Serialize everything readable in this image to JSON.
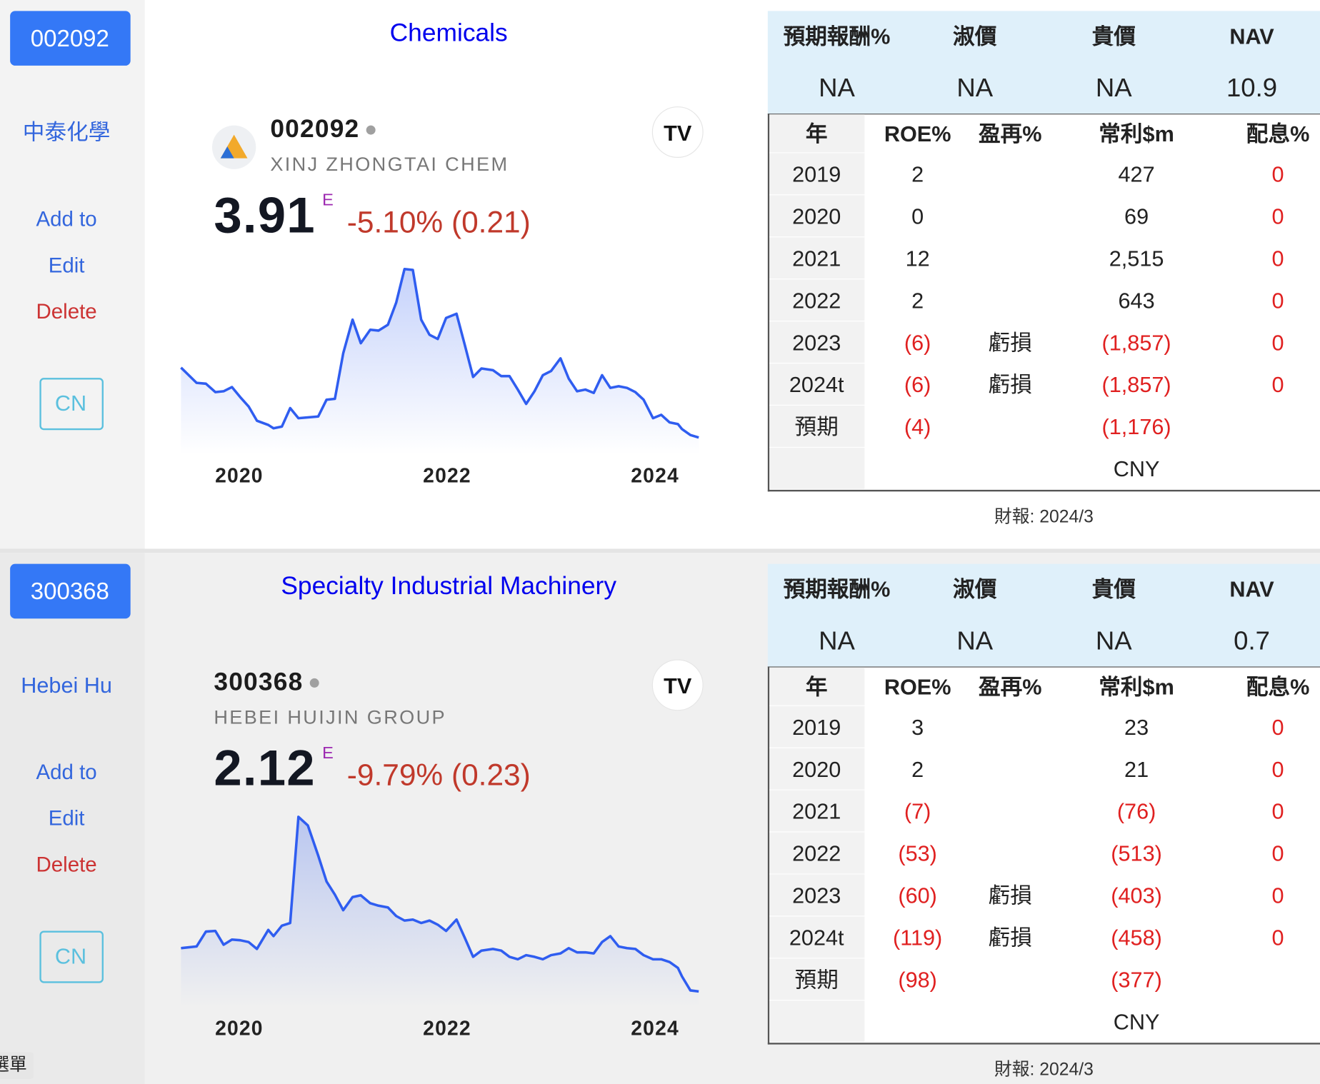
{
  "menu": "選單",
  "cards": [
    {
      "code": "002092",
      "name": "中泰化學",
      "industry": "Chemicals",
      "actions": [
        "Add to",
        "Edit",
        "Delete"
      ],
      "market": "CN",
      "quote": {
        "symbol": "002092",
        "company": "XINJ ZHONGTAI CHEM",
        "price": "3.91",
        "flag": "E",
        "change": "-5.10% (0.21)"
      },
      "valuation": {
        "headers": [
          "預期報酬%",
          "淑價",
          "貴價",
          "NAV"
        ],
        "values": [
          "NA",
          "NA",
          "NA",
          "10.9"
        ]
      },
      "financials": {
        "headers": [
          "年",
          "ROE%",
          "盈再%",
          "常利$m",
          "配息%"
        ],
        "rows": [
          [
            "2019",
            "2",
            null,
            "427",
            "0"
          ],
          [
            "2020",
            "0",
            null,
            "69",
            "0"
          ],
          [
            "2021",
            "12",
            null,
            "2,515",
            "0"
          ],
          [
            "2022",
            "2",
            null,
            "643",
            "0"
          ],
          [
            "2023",
            "(6)",
            "虧損",
            "(1,857)",
            "0"
          ],
          [
            "2024t",
            "(6)",
            "虧損",
            "(1,857)",
            "0"
          ],
          [
            "預期",
            "(4)",
            null,
            "(1,176)",
            null
          ]
        ],
        "currency": "CNY"
      },
      "report": "財報: 2024/3"
    },
    {
      "code": "300368",
      "name": "Hebei Hu",
      "industry": "Specialty Industrial Machinery",
      "actions": [
        "Add to",
        "Edit",
        "Delete"
      ],
      "market": "CN",
      "quote": {
        "symbol": "300368",
        "company": "HEBEI HUIJIN GROUP",
        "price": "2.12",
        "flag": "E",
        "change": "-9.79% (0.23)"
      },
      "valuation": {
        "headers": [
          "預期報酬%",
          "淑價",
          "貴價",
          "NAV"
        ],
        "values": [
          "NA",
          "NA",
          "NA",
          "0.7"
        ]
      },
      "financials": {
        "headers": [
          "年",
          "ROE%",
          "盈再%",
          "常利$m",
          "配息%"
        ],
        "rows": [
          [
            "2019",
            "3",
            null,
            "23",
            "0"
          ],
          [
            "2020",
            "2",
            null,
            "21",
            "0"
          ],
          [
            "2021",
            "(7)",
            null,
            "(76)",
            "0"
          ],
          [
            "2022",
            "(53)",
            null,
            "(513)",
            "0"
          ],
          [
            "2023",
            "(60)",
            "虧損",
            "(403)",
            "0"
          ],
          [
            "2024t",
            "(119)",
            "虧損",
            "(458)",
            "0"
          ],
          [
            "預期",
            "(98)",
            null,
            "(377)",
            null
          ]
        ],
        "currency": "CNY"
      },
      "report": "財報: 2024/3"
    }
  ],
  "chart_data": [
    {
      "type": "line",
      "color": "#2f5df0",
      "x": [
        2019.44,
        2019.59,
        2019.68,
        2019.77,
        2019.85,
        2019.93,
        2020.01,
        2020.09,
        2020.17,
        2020.28,
        2020.33,
        2020.41,
        2020.49,
        2020.57,
        2020.66,
        2020.76,
        2020.84,
        2020.92,
        2021.0,
        2021.09,
        2021.17,
        2021.26,
        2021.34,
        2021.43,
        2021.51,
        2021.59,
        2021.67,
        2021.75,
        2021.83,
        2021.91,
        2021.99,
        2022.09,
        2022.17,
        2022.25,
        2022.33,
        2022.44,
        2022.52,
        2022.6,
        2022.68,
        2022.76,
        2022.84,
        2022.92,
        2023.0,
        2023.09,
        2023.17,
        2023.25,
        2023.33,
        2023.41,
        2023.49,
        2023.57,
        2023.65,
        2023.73,
        2023.81,
        2023.89,
        2023.98,
        2024.06,
        2024.14,
        2024.22,
        2024.26,
        2024.34,
        2024.42
      ],
      "values": [
        6.4,
        5.86,
        5.83,
        5.53,
        5.56,
        5.71,
        5.35,
        5.02,
        4.51,
        4.36,
        4.24,
        4.3,
        4.96,
        4.6,
        4.63,
        4.66,
        5.26,
        5.29,
        6.91,
        8.11,
        7.27,
        7.75,
        7.72,
        7.93,
        8.71,
        9.91,
        9.88,
        8.11,
        7.57,
        7.42,
        8.17,
        8.32,
        7.21,
        6.07,
        6.37,
        6.31,
        6.1,
        6.1,
        5.62,
        5.11,
        5.56,
        6.13,
        6.28,
        6.73,
        6.01,
        5.56,
        5.62,
        5.5,
        6.13,
        5.68,
        5.74,
        5.68,
        5.53,
        5.26,
        4.6,
        4.72,
        4.45,
        4.39,
        4.21,
        4.0,
        3.91
      ],
      "xlim": [
        2019.44,
        2024.42
      ],
      "xticks": [
        2020,
        2022,
        2024
      ],
      "ylim": [
        2.5,
        10.5
      ]
    },
    {
      "type": "line",
      "color": "#2f5df0",
      "x": [
        2019.44,
        2019.59,
        2019.68,
        2019.77,
        2019.85,
        2019.93,
        2020.01,
        2020.09,
        2020.17,
        2020.28,
        2020.33,
        2020.41,
        2020.49,
        2020.57,
        2020.66,
        2020.76,
        2020.84,
        2020.92,
        2021.0,
        2021.09,
        2021.17,
        2021.26,
        2021.34,
        2021.43,
        2021.51,
        2021.59,
        2021.67,
        2021.75,
        2021.83,
        2021.91,
        2021.99,
        2022.09,
        2022.17,
        2022.25,
        2022.33,
        2022.44,
        2022.52,
        2022.6,
        2022.68,
        2022.76,
        2022.84,
        2022.92,
        2023.0,
        2023.09,
        2023.17,
        2023.25,
        2023.33,
        2023.41,
        2023.49,
        2023.57,
        2023.65,
        2023.73,
        2023.81,
        2023.89,
        2023.98,
        2024.06,
        2024.14,
        2024.22,
        2024.26,
        2024.34,
        2024.42
      ],
      "values": [
        3.37,
        3.42,
        3.85,
        3.87,
        3.47,
        3.62,
        3.6,
        3.55,
        3.35,
        3.9,
        3.72,
        4.02,
        4.1,
        7.17,
        6.92,
        6.05,
        5.3,
        4.92,
        4.47,
        4.85,
        4.9,
        4.67,
        4.6,
        4.55,
        4.3,
        4.17,
        4.2,
        4.1,
        4.17,
        4.05,
        3.87,
        4.2,
        3.67,
        3.12,
        3.3,
        3.35,
        3.3,
        3.12,
        3.05,
        3.17,
        3.12,
        3.05,
        3.17,
        3.22,
        3.37,
        3.25,
        3.25,
        3.22,
        3.55,
        3.72,
        3.42,
        3.37,
        3.35,
        3.17,
        3.05,
        3.05,
        2.97,
        2.8,
        2.55,
        2.15,
        2.12
      ],
      "xlim": [
        2019.44,
        2024.42
      ],
      "xticks": [
        2020,
        2022,
        2024
      ],
      "ylim": [
        1,
        7.5
      ]
    }
  ]
}
